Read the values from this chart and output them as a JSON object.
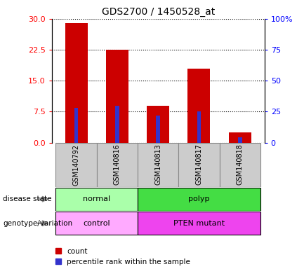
{
  "title": "GDS2700 / 1450528_at",
  "samples": [
    "GSM140792",
    "GSM140816",
    "GSM140813",
    "GSM140817",
    "GSM140818"
  ],
  "counts": [
    29.0,
    22.5,
    9.0,
    18.0,
    2.5
  ],
  "percentiles": [
    28.0,
    30.0,
    22.0,
    25.0,
    4.0
  ],
  "left_ylim": [
    0,
    30
  ],
  "right_ylim": [
    0,
    100
  ],
  "left_yticks": [
    0,
    7.5,
    15,
    22.5,
    30
  ],
  "right_yticks": [
    0,
    25,
    50,
    75,
    100
  ],
  "right_yticklabels": [
    "0",
    "25",
    "50",
    "75",
    "100%"
  ],
  "bar_color_red": "#cc0000",
  "bar_color_blue": "#3333cc",
  "disease_normal_color": "#aaffaa",
  "disease_polyp_color": "#44dd44",
  "geno_control_color": "#ffaaff",
  "geno_mutant_color": "#ee44ee",
  "legend_items": [
    "count",
    "percentile rank within the sample"
  ]
}
